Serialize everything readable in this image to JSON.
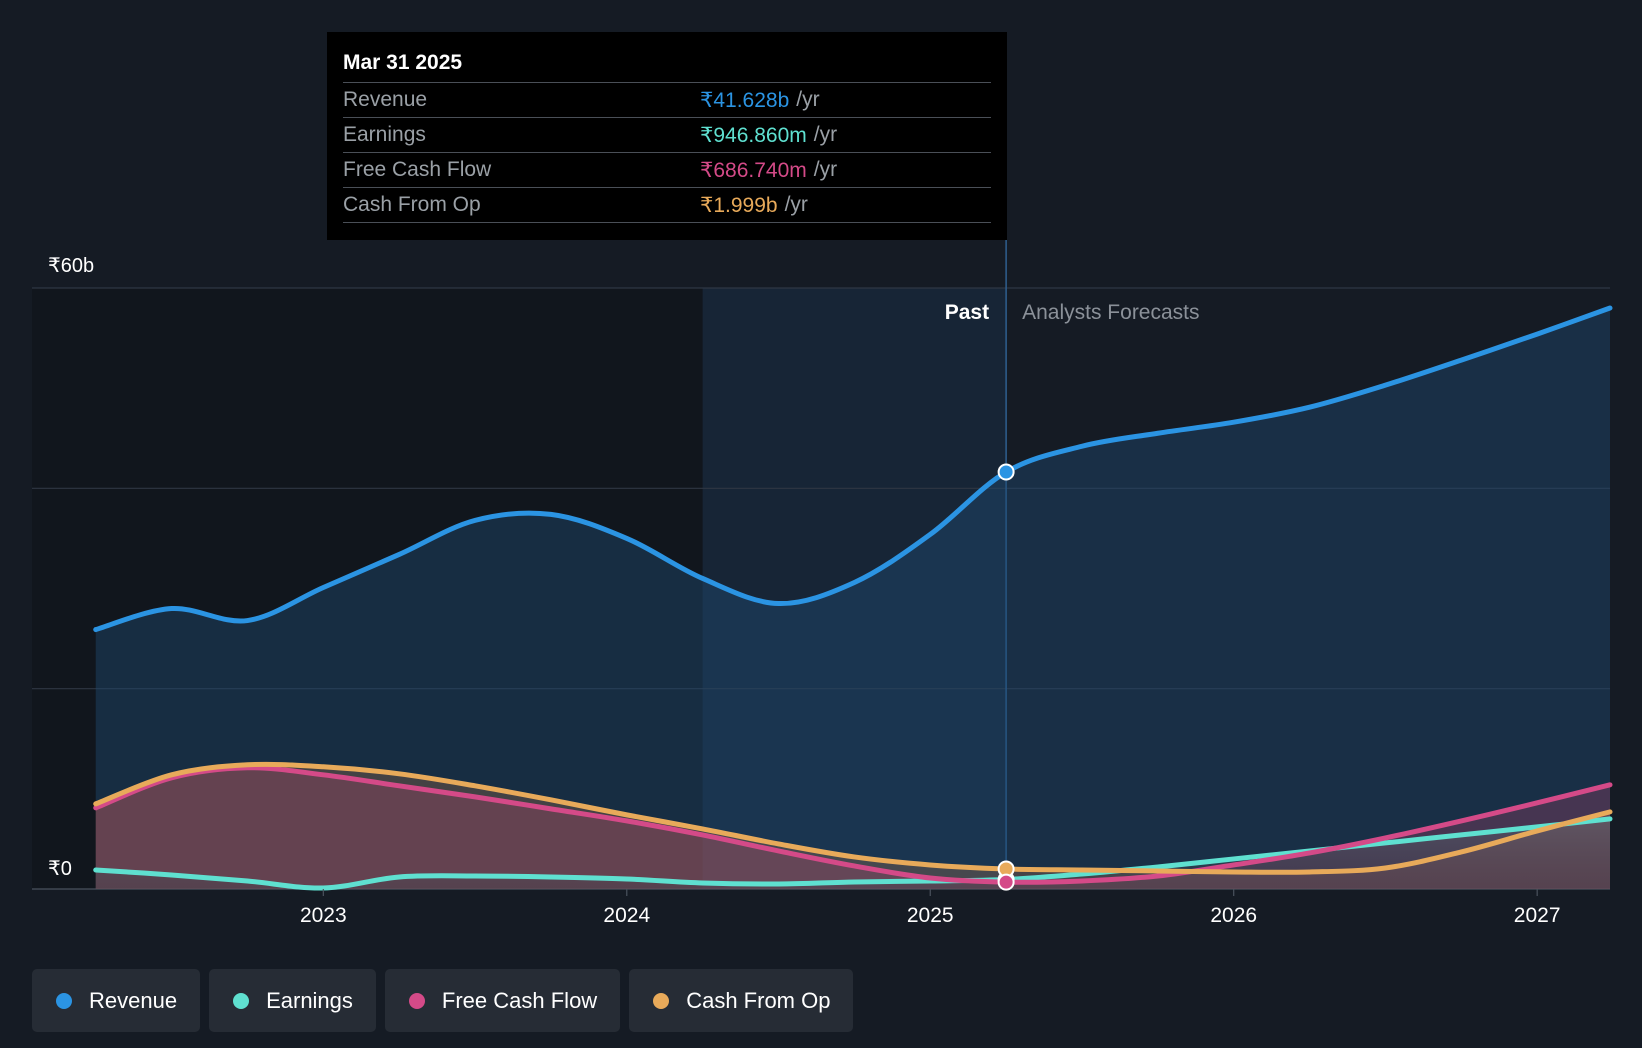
{
  "tooltip": {
    "date": "Mar 31 2025",
    "rows": [
      {
        "label": "Revenue",
        "value": "₹41.628b",
        "unit": "/yr",
        "color": "#2b94e3"
      },
      {
        "label": "Earnings",
        "value": "₹946.860m",
        "unit": "/yr",
        "color": "#5fe0d0"
      },
      {
        "label": "Free Cash Flow",
        "value": "₹686.740m",
        "unit": "/yr",
        "color": "#d44a88"
      },
      {
        "label": "Cash From Op",
        "value": "₹1.999b",
        "unit": "/yr",
        "color": "#e8aa5a"
      }
    ]
  },
  "legend": [
    {
      "label": "Revenue",
      "color": "#2b94e3"
    },
    {
      "label": "Earnings",
      "color": "#5fe0d0"
    },
    {
      "label": "Free Cash Flow",
      "color": "#d44a88"
    },
    {
      "label": "Cash From Op",
      "color": "#e8aa5a"
    }
  ],
  "chart_data": {
    "type": "line",
    "title": "",
    "ylabel": "",
    "xlabel": "",
    "ylim": [
      0,
      60
    ],
    "xlim": [
      2022.04,
      2027.24
    ],
    "y_unit": "₹b",
    "y_tick_labels": [
      {
        "value": 60,
        "label": "₹60b"
      },
      {
        "value": 0,
        "label": "₹0"
      }
    ],
    "y_gridlines": [
      0,
      20,
      40,
      60
    ],
    "x_ticks": [
      {
        "value": 2023.0,
        "label": "2023"
      },
      {
        "value": 2024.0,
        "label": "2024"
      },
      {
        "value": 2025.0,
        "label": "2025"
      },
      {
        "value": 2026.0,
        "label": "2026"
      },
      {
        "value": 2027.0,
        "label": "2027"
      }
    ],
    "past_label": "Past",
    "forecast_label": "Analysts Forecasts",
    "past_highlight_start": 2024.25,
    "divider_x": 2025.25,
    "series": [
      {
        "name": "Revenue",
        "color": "#2b94e3",
        "points": [
          [
            2022.25,
            25.9
          ],
          [
            2022.5,
            28.0
          ],
          [
            2022.75,
            26.8
          ],
          [
            2023.0,
            30.1
          ],
          [
            2023.25,
            33.4
          ],
          [
            2023.5,
            36.8
          ],
          [
            2023.75,
            37.4
          ],
          [
            2024.0,
            35.0
          ],
          [
            2024.25,
            31.0
          ],
          [
            2024.5,
            28.5
          ],
          [
            2024.75,
            30.6
          ],
          [
            2025.0,
            35.4
          ],
          [
            2025.25,
            41.628
          ],
          [
            2025.5,
            44.2
          ],
          [
            2025.75,
            45.5
          ],
          [
            2026.0,
            46.6
          ],
          [
            2026.25,
            48.1
          ],
          [
            2026.5,
            50.3
          ],
          [
            2026.75,
            52.8
          ],
          [
            2027.0,
            55.4
          ],
          [
            2027.24,
            58.0
          ]
        ]
      },
      {
        "name": "Earnings",
        "color": "#5fe0d0",
        "points": [
          [
            2022.25,
            1.9
          ],
          [
            2022.5,
            1.4
          ],
          [
            2022.75,
            0.8
          ],
          [
            2023.0,
            0.1
          ],
          [
            2023.25,
            1.2
          ],
          [
            2023.5,
            1.3
          ],
          [
            2023.75,
            1.2
          ],
          [
            2024.0,
            1.0
          ],
          [
            2024.25,
            0.6
          ],
          [
            2024.5,
            0.5
          ],
          [
            2024.75,
            0.7
          ],
          [
            2025.0,
            0.8
          ],
          [
            2025.25,
            0.947
          ],
          [
            2025.5,
            1.5
          ],
          [
            2025.75,
            2.2
          ],
          [
            2026.0,
            3.0
          ],
          [
            2026.25,
            3.8
          ],
          [
            2026.5,
            4.6
          ],
          [
            2026.75,
            5.4
          ],
          [
            2027.0,
            6.2
          ],
          [
            2027.24,
            7.0
          ]
        ]
      },
      {
        "name": "Free Cash Flow",
        "color": "#d44a88",
        "points": [
          [
            2022.25,
            8.1
          ],
          [
            2022.5,
            11.1
          ],
          [
            2022.75,
            12.1
          ],
          [
            2023.0,
            11.4
          ],
          [
            2023.25,
            10.3
          ],
          [
            2023.5,
            9.2
          ],
          [
            2023.75,
            8.0
          ],
          [
            2024.0,
            6.8
          ],
          [
            2024.25,
            5.4
          ],
          [
            2024.5,
            3.8
          ],
          [
            2024.75,
            2.3
          ],
          [
            2025.0,
            1.1
          ],
          [
            2025.25,
            0.687
          ],
          [
            2025.5,
            0.8
          ],
          [
            2025.75,
            1.3
          ],
          [
            2026.0,
            2.4
          ],
          [
            2026.25,
            3.6
          ],
          [
            2026.5,
            5.1
          ],
          [
            2026.75,
            6.8
          ],
          [
            2027.0,
            8.6
          ],
          [
            2027.24,
            10.4
          ]
        ]
      },
      {
        "name": "Cash From Op",
        "color": "#e8aa5a",
        "points": [
          [
            2022.25,
            8.5
          ],
          [
            2022.5,
            11.4
          ],
          [
            2022.75,
            12.4
          ],
          [
            2023.0,
            12.2
          ],
          [
            2023.25,
            11.5
          ],
          [
            2023.5,
            10.3
          ],
          [
            2023.75,
            8.9
          ],
          [
            2024.0,
            7.4
          ],
          [
            2024.25,
            6.0
          ],
          [
            2024.5,
            4.5
          ],
          [
            2024.75,
            3.2
          ],
          [
            2025.0,
            2.4
          ],
          [
            2025.25,
            1.999
          ],
          [
            2025.5,
            1.9
          ],
          [
            2025.75,
            1.8
          ],
          [
            2026.0,
            1.7
          ],
          [
            2026.25,
            1.7
          ],
          [
            2026.5,
            2.1
          ],
          [
            2026.75,
            3.7
          ],
          [
            2027.0,
            5.8
          ],
          [
            2027.24,
            7.7
          ]
        ]
      }
    ]
  }
}
